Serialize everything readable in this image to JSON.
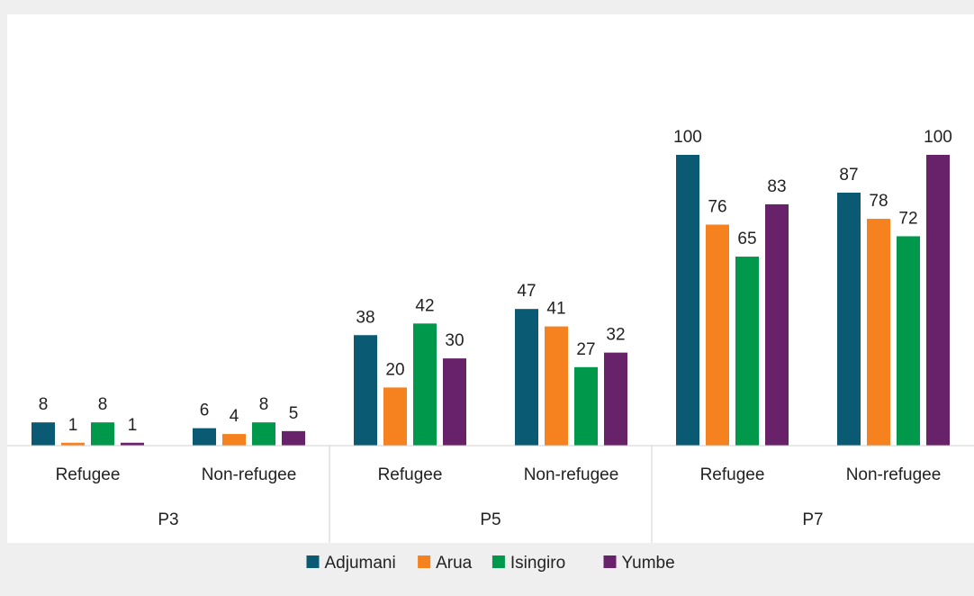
{
  "chart_data": {
    "type": "bar",
    "title": "",
    "xlabel": "",
    "ylabel": "",
    "ylim": [
      0,
      100
    ],
    "grid": false,
    "legend_position": "bottom",
    "groups": [
      {
        "label": "P3",
        "categories": [
          "Refugee",
          "Non-refugee"
        ]
      },
      {
        "label": "P5",
        "categories": [
          "Refugee",
          "Non-refugee"
        ]
      },
      {
        "label": "P7",
        "categories": [
          "Refugee",
          "Non-refugee"
        ]
      }
    ],
    "categories": [
      "P3 Refugee",
      "P3 Non-refugee",
      "P5 Refugee",
      "P5 Non-refugee",
      "P7 Refugee",
      "P7 Non-refugee"
    ],
    "series": [
      {
        "name": "Adjumani",
        "color": "#0b5a73",
        "values": [
          8,
          6,
          38,
          47,
          100,
          87
        ]
      },
      {
        "name": "Arua",
        "color": "#f5821f",
        "values": [
          1,
          4,
          20,
          41,
          76,
          78
        ]
      },
      {
        "name": "Isingiro",
        "color": "#00984a",
        "values": [
          8,
          8,
          42,
          27,
          65,
          72
        ]
      },
      {
        "name": "Yumbe",
        "color": "#67226a",
        "values": [
          1,
          5,
          30,
          32,
          83,
          100
        ]
      }
    ]
  }
}
